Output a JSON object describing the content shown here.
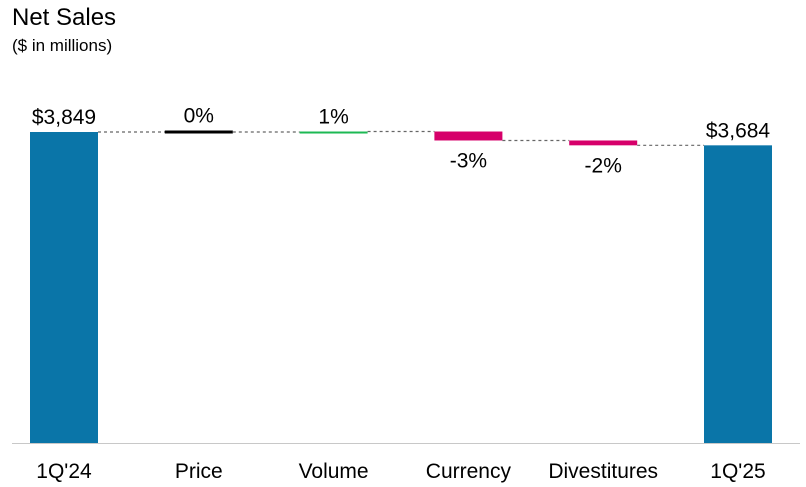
{
  "chart_data": {
    "type": "bar",
    "subtype": "waterfall",
    "title": "Net Sales",
    "subtitle": "($ in millions)",
    "categories": [
      "1Q'24",
      "Price",
      "Volume",
      "Currency",
      "Divestitures",
      "1Q'25"
    ],
    "values": [
      3849,
      0,
      1,
      -3,
      -2,
      3684
    ],
    "labels": [
      "$3,849",
      "0%",
      "1%",
      "-3%",
      "-2%",
      "$3,684"
    ],
    "kinds": [
      "total",
      "change",
      "change",
      "change",
      "change",
      "total"
    ],
    "level_after": [
      3849,
      3849,
      3855,
      3744,
      3684,
      3684
    ],
    "colors": {
      "total": "#0a75a8",
      "increase": "#1db954",
      "decrease": "#d6006a",
      "neutral": "#000000",
      "connector": "#666666"
    }
  }
}
